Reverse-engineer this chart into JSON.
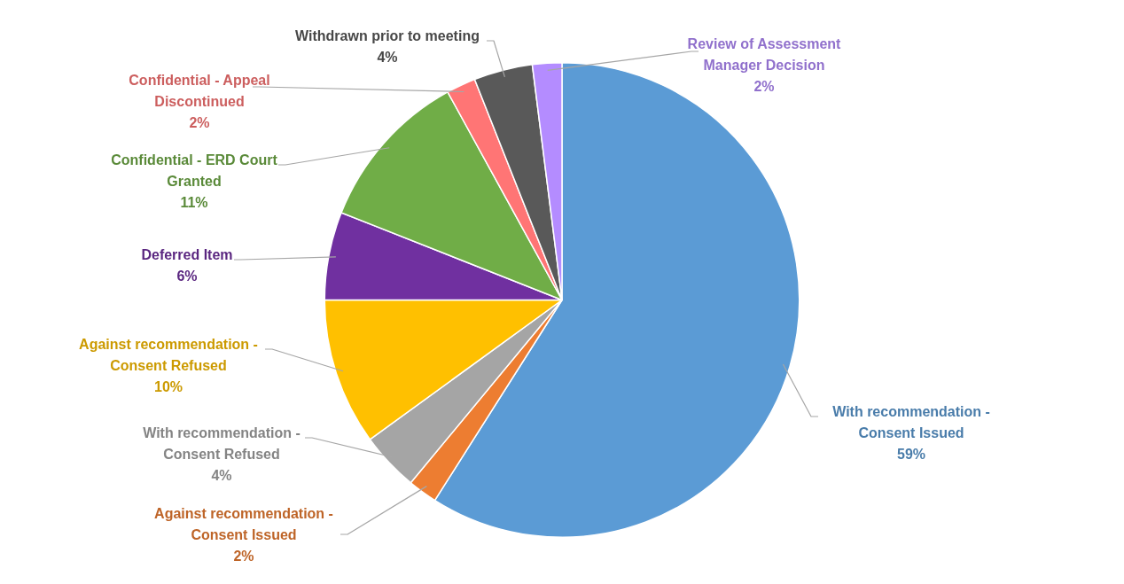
{
  "chart_data": {
    "type": "pie",
    "categories": [
      "With recommendation - Consent Issued",
      "Against recommendation - Consent Issued",
      "With recommendation - Consent Refused",
      "Against recommendation - Consent Refused",
      "Deferred Item",
      "Confidential - ERD Court Granted",
      "Confidential - Appeal Discontinued",
      "Withdrawn prior to meeting",
      "Review of Assessment Manager Decision"
    ],
    "values": [
      59,
      2,
      4,
      10,
      6,
      11,
      2,
      4,
      2
    ],
    "value_labels": [
      "59%",
      "2%",
      "4%",
      "10%",
      "6%",
      "11%",
      "2%",
      "4%",
      "2%"
    ],
    "colors": [
      "#5b9bd5",
      "#ed7d31",
      "#a5a5a5",
      "#ffc000",
      "#7030a0",
      "#70ad47",
      "#ff7575",
      "#595959",
      "#b48cff"
    ],
    "legend": false
  }
}
